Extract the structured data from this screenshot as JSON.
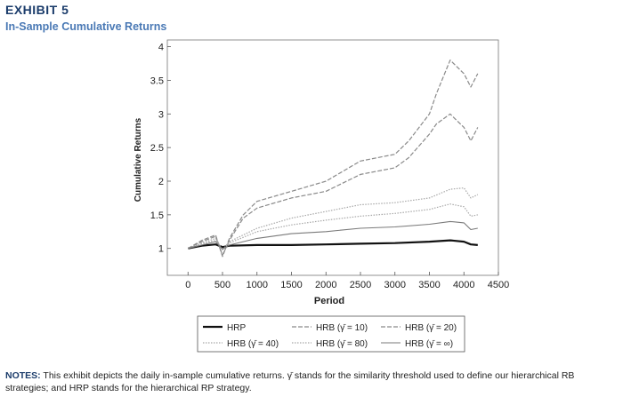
{
  "header": {
    "exhibit": "EXHIBIT 5",
    "title": "In-Sample Cumulative Returns"
  },
  "notes": {
    "label": "NOTES:",
    "text": "This exhibit depicts the daily in-sample cumulative returns. γ̄ stands for the similarity threshold used to define our hierarchical RB strategies; and HRP stands for the hierarchical RP strategy."
  },
  "colors": {
    "exhibit_text": "#1b3c6b",
    "title_text": "#4a79b5",
    "hrp": "#111111",
    "hrb": "#8a8a8a"
  },
  "chart_data": {
    "type": "line",
    "xlabel": "Period",
    "ylabel": "Cumulative Returns",
    "xlim": [
      -300,
      4500
    ],
    "ylim": [
      0.6,
      4.1
    ],
    "xticks": [
      0,
      500,
      1000,
      1500,
      2000,
      2500,
      3000,
      3500,
      4000,
      4500
    ],
    "yticks": [
      1,
      1.5,
      2,
      2.5,
      3,
      3.5,
      4
    ],
    "ytick_labels": [
      "1",
      "1.5",
      "2",
      "2.5",
      "3",
      "3.5",
      "4"
    ],
    "legend_position": "below",
    "series": [
      {
        "name": "HRP",
        "style": "solid-thick",
        "x": [
          0,
          200,
          400,
          500,
          600,
          1000,
          1500,
          2000,
          2500,
          3000,
          3500,
          3800,
          4000,
          4100,
          4200
        ],
        "y": [
          1.0,
          1.04,
          1.06,
          1.02,
          1.04,
          1.05,
          1.05,
          1.06,
          1.07,
          1.08,
          1.1,
          1.12,
          1.1,
          1.06,
          1.05
        ]
      },
      {
        "name": "HRB (γ̄ = 10)",
        "style": "dashed",
        "x": [
          0,
          200,
          400,
          500,
          600,
          800,
          1000,
          1500,
          2000,
          2500,
          3000,
          3200,
          3500,
          3600,
          3800,
          3900,
          4000,
          4100,
          4200
        ],
        "y": [
          1.0,
          1.12,
          1.2,
          0.88,
          1.15,
          1.5,
          1.7,
          1.85,
          2.0,
          2.3,
          2.4,
          2.6,
          3.0,
          3.3,
          3.8,
          3.7,
          3.6,
          3.4,
          3.6
        ]
      },
      {
        "name": "HRB (γ̄ = 20)",
        "style": "dashed",
        "x": [
          0,
          200,
          400,
          500,
          600,
          800,
          1000,
          1500,
          2000,
          2500,
          3000,
          3200,
          3500,
          3600,
          3800,
          3900,
          4000,
          4100,
          4200
        ],
        "y": [
          1.0,
          1.1,
          1.18,
          0.9,
          1.12,
          1.45,
          1.6,
          1.75,
          1.85,
          2.1,
          2.2,
          2.35,
          2.7,
          2.85,
          3.0,
          2.9,
          2.8,
          2.6,
          2.8
        ]
      },
      {
        "name": "HRB (γ̄ = 40)",
        "style": "dotted",
        "x": [
          0,
          200,
          400,
          500,
          600,
          1000,
          1500,
          2000,
          2500,
          3000,
          3500,
          3800,
          4000,
          4100,
          4200
        ],
        "y": [
          1.0,
          1.08,
          1.15,
          0.98,
          1.1,
          1.3,
          1.45,
          1.55,
          1.65,
          1.68,
          1.75,
          1.88,
          1.9,
          1.75,
          1.8
        ]
      },
      {
        "name": "HRB (γ̄ = 80)",
        "style": "dotted",
        "x": [
          0,
          200,
          400,
          500,
          600,
          1000,
          1500,
          2000,
          2500,
          3000,
          3500,
          3800,
          4000,
          4100,
          4200
        ],
        "y": [
          1.0,
          1.07,
          1.12,
          0.98,
          1.08,
          1.25,
          1.35,
          1.42,
          1.48,
          1.52,
          1.58,
          1.66,
          1.62,
          1.48,
          1.5
        ]
      },
      {
        "name": "HRB (γ̄ = ∞)",
        "style": "solid-thin",
        "x": [
          0,
          200,
          400,
          500,
          600,
          1000,
          1500,
          2000,
          2500,
          3000,
          3500,
          3800,
          4000,
          4100,
          4200
        ],
        "y": [
          1.0,
          1.05,
          1.1,
          0.99,
          1.05,
          1.15,
          1.22,
          1.25,
          1.3,
          1.32,
          1.36,
          1.4,
          1.38,
          1.28,
          1.3
        ]
      }
    ]
  }
}
